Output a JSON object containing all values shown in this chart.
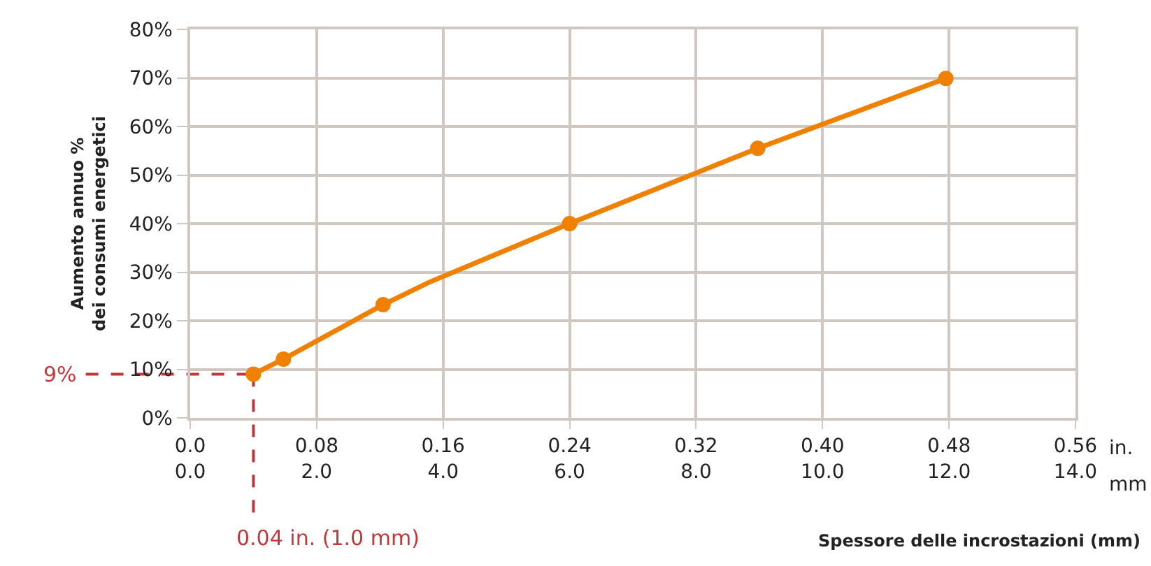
{
  "chart_data": {
    "type": "line",
    "ylabel": "Aumento annuo %\ndei consumi energetici",
    "xlabel": "Spessore delle incrostazioni (mm)",
    "x2label": "mm",
    "annotations": [
      "in."
    ],
    "x": [
      0.04,
      0.059,
      0.122,
      0.151,
      0.24,
      0.359,
      0.478
    ],
    "series": [
      {
        "color": "#f08000",
        "values": [
          9,
          12.1,
          23.3,
          27.9,
          40,
          55.5,
          69.9
        ],
        "marker": "none"
      },
      {
        "type": "scatter",
        "color": "#f08000",
        "x": [
          0.04,
          0.059,
          0.122,
          0.24,
          0.359,
          0.478
        ],
        "values": [
          9,
          12.1,
          23.3,
          40,
          55.5,
          69.9
        ],
        "marker": "circle"
      }
    ],
    "line_style": "solid",
    "grid": true,
    "xlim": [
      0,
      0.56
    ],
    "xticks": [
      {
        "value": 0,
        "label": "0.0"
      },
      0.08,
      0.16,
      0.24,
      0.32,
      {
        "value": 0.4,
        "label": "0.40"
      },
      0.48,
      0.56
    ],
    "x2lim": [
      0,
      14
    ],
    "x2ticks": [
      {
        "value": 0,
        "label": "0.0"
      },
      {
        "value": 2,
        "label": "2.0"
      },
      {
        "value": 4,
        "label": "4.0"
      },
      {
        "value": 6,
        "label": "6.0"
      },
      {
        "value": 8,
        "label": "8.0"
      },
      {
        "value": 10,
        "label": "10.0"
      },
      {
        "value": 12,
        "label": "12.0"
      },
      {
        "value": 14,
        "label": "14.0"
      }
    ],
    "ylim": [
      0,
      80
    ],
    "yticks": [
      {
        "value": 0,
        "label": "0%"
      },
      {
        "value": 10,
        "label": "10%"
      },
      {
        "value": 20,
        "label": "20%"
      },
      {
        "value": 30,
        "label": "30%"
      },
      {
        "value": 40,
        "label": "40%"
      },
      {
        "value": 50,
        "label": "50%"
      },
      {
        "value": 60,
        "label": "60%"
      },
      {
        "value": 70,
        "label": "70%"
      },
      {
        "value": 80,
        "label": "80%"
      }
    ],
    "ref_lines": [
      {
        "axis": "y",
        "value": 9,
        "label": "9%",
        "color": "#c0393b",
        "line_style": "dashed"
      },
      {
        "axis": "x",
        "value": 0.04,
        "label": "0.04 in. (1.0 mm)",
        "color": "#c0393b",
        "line_style": "dashed"
      }
    ]
  }
}
